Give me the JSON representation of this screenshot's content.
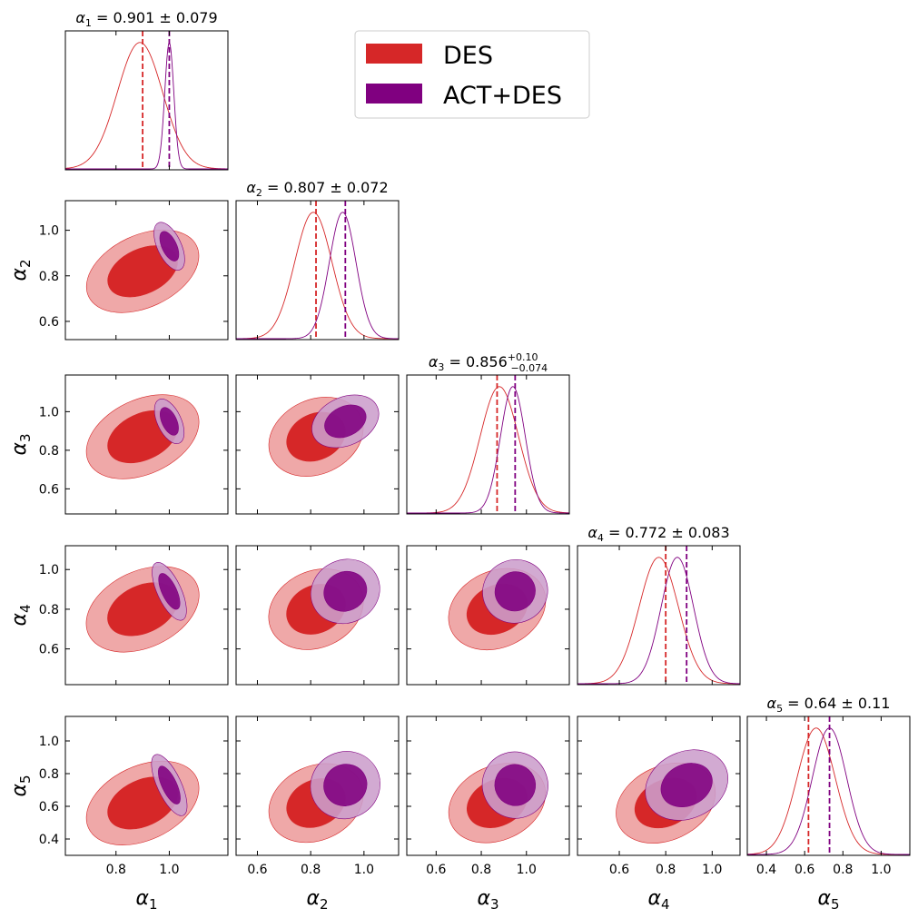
{
  "chart_data": {
    "type": "corner",
    "parameters": [
      {
        "symbol": "α",
        "sub": "1",
        "range": [
          0.61,
          1.22
        ],
        "ticks": [
          0.8,
          1.0
        ],
        "tick_labels": [
          "0.8",
          "1.0"
        ],
        "title": {
          "text": "α",
          "sub": "1",
          "value": " = 0.901 ± 0.079"
        }
      },
      {
        "symbol": "α",
        "sub": "2",
        "range": [
          0.52,
          1.13
        ],
        "ticks": [
          0.6,
          0.8,
          1.0
        ],
        "tick_labels": [
          "0.6",
          "0.8",
          "1.0"
        ],
        "title": {
          "text": "α",
          "sub": "2",
          "value": " = 0.807 ± 0.072"
        }
      },
      {
        "symbol": "α",
        "sub": "3",
        "range": [
          0.47,
          1.19
        ],
        "ticks": [
          0.6,
          0.8,
          1.0
        ],
        "tick_labels": [
          "0.6",
          "0.8",
          "1.0"
        ],
        "title": {
          "text": "α",
          "sub": "3",
          "value": " = 0.856",
          "sup": "+0.10",
          "subv": "−0.074"
        }
      },
      {
        "symbol": "α",
        "sub": "4",
        "range": [
          0.42,
          1.12
        ],
        "ticks": [
          0.6,
          0.8,
          1.0
        ],
        "tick_labels": [
          "0.6",
          "0.8",
          "1.0"
        ],
        "title": {
          "text": "α",
          "sub": "4",
          "value": " = 0.772 ± 0.083"
        }
      },
      {
        "symbol": "α",
        "sub": "5",
        "range": [
          0.3,
          1.15
        ],
        "ticks": [
          0.4,
          0.6,
          0.8,
          1.0
        ],
        "tick_labels": [
          "0.4",
          "0.6",
          "0.8",
          "1.0"
        ],
        "title": {
          "text": "α",
          "sub": "5",
          "value": " = 0.64 ± 0.11"
        }
      }
    ],
    "series": [
      {
        "name": "DES",
        "color": "#d62728",
        "light_color": "#efa8a8",
        "means": [
          0.9,
          0.82,
          0.87,
          0.8,
          0.62
        ],
        "peaks": [
          0.89,
          0.81,
          0.88,
          0.77,
          0.66
        ],
        "sigmas": [
          0.085,
          0.07,
          0.085,
          0.085,
          0.1
        ]
      },
      {
        "name": "ACT+DES",
        "color": "#800080",
        "light_color": "#cc9ecc",
        "means": [
          1.0,
          0.93,
          0.95,
          0.89,
          0.73
        ],
        "peaks": [
          1.0,
          0.92,
          0.94,
          0.85,
          0.73
        ],
        "sigmas": [
          0.017,
          0.05,
          0.055,
          0.07,
          0.09
        ]
      }
    ],
    "legend": {
      "placement": "top-center",
      "entries": [
        "DES",
        "ACT+DES"
      ]
    },
    "grid": false
  }
}
